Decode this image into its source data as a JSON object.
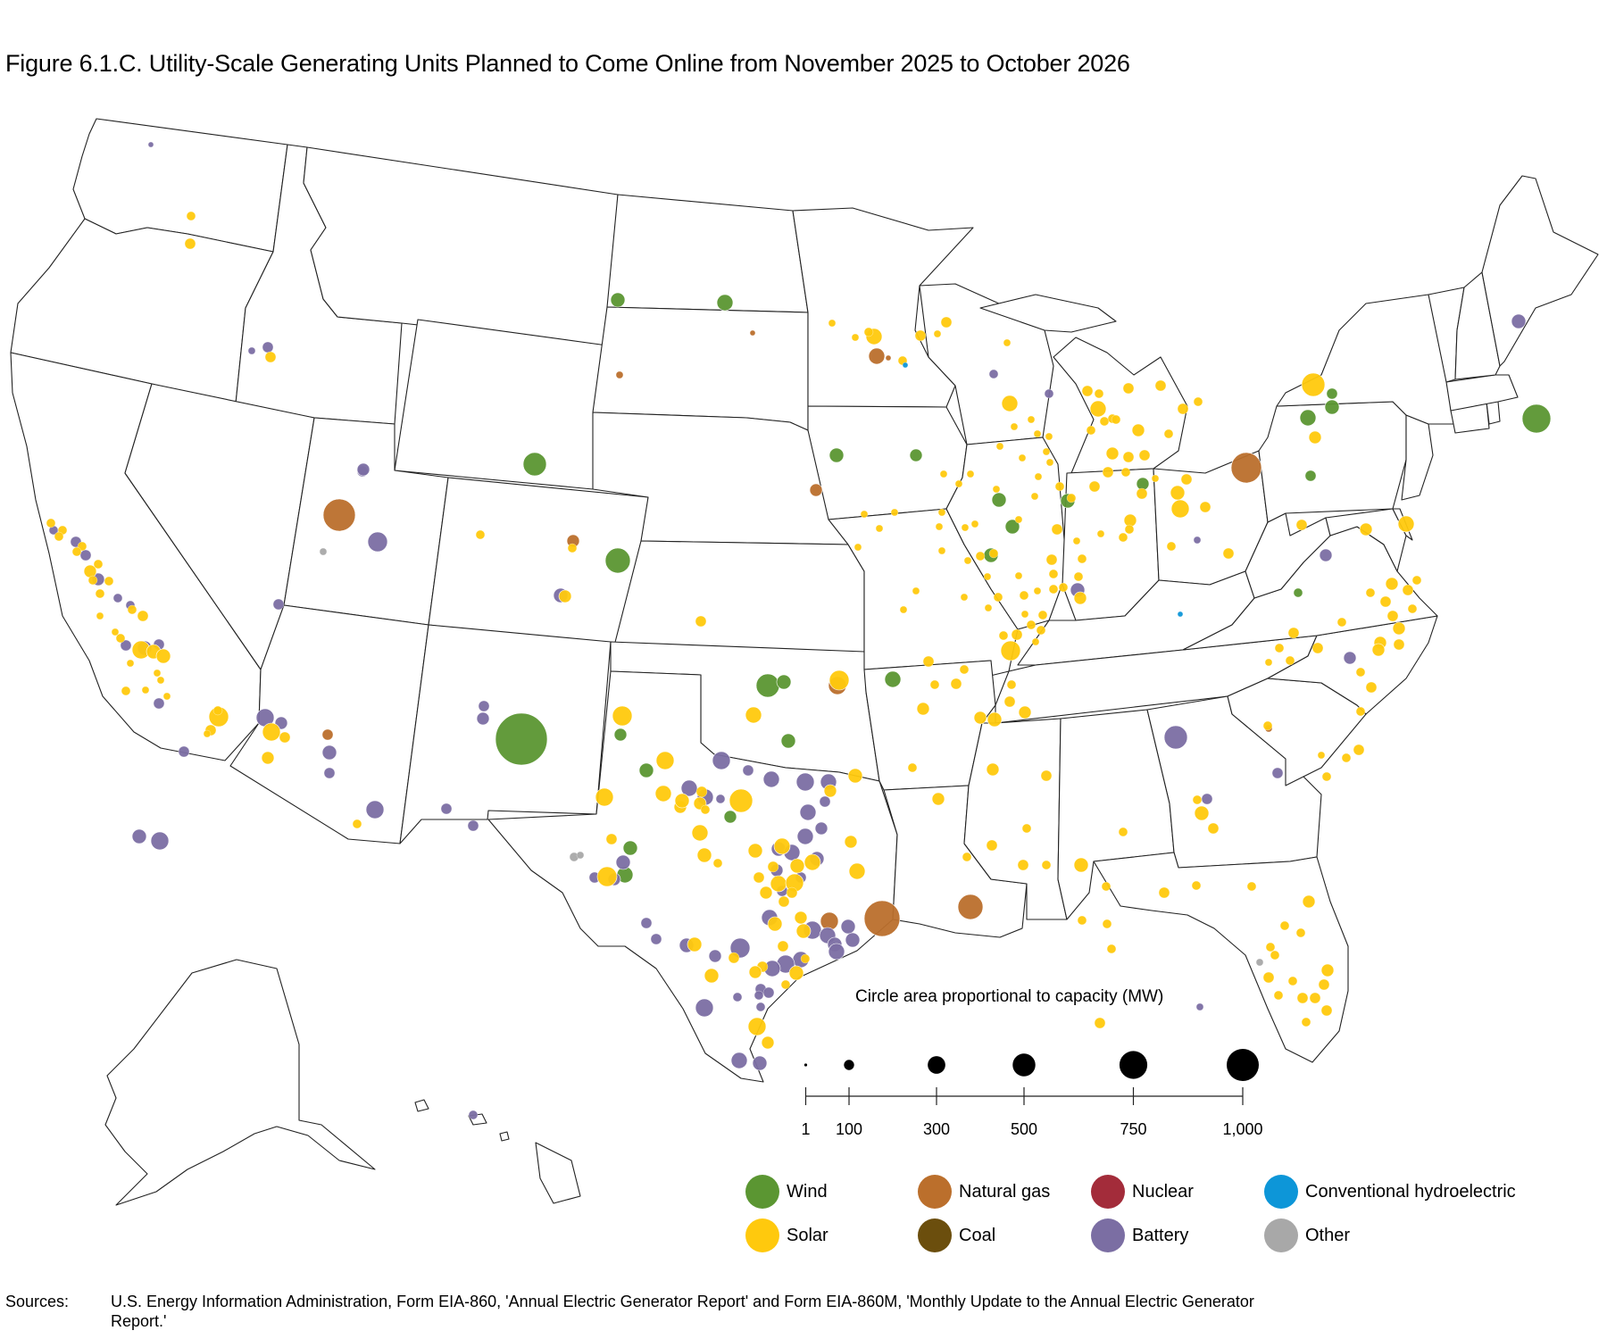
{
  "title": "Figure 6.1.C. Utility-Scale Generating Units Planned to Come Online from November 2025 to October 2026",
  "legend": {
    "size_title": "Circle area proportional to capacity (MW)",
    "size_ticks": [
      {
        "value": 1,
        "label": "1"
      },
      {
        "value": 100,
        "label": "100"
      },
      {
        "value": 300,
        "label": "300"
      },
      {
        "value": 500,
        "label": "500"
      },
      {
        "value": 750,
        "label": "750"
      },
      {
        "value": 1000,
        "label": "1,000"
      }
    ],
    "categories": [
      {
        "key": "wind",
        "label": "Wind",
        "color": "#5b9632"
      },
      {
        "key": "natural_gas",
        "label": "Natural gas",
        "color": "#bb6f2c"
      },
      {
        "key": "nuclear",
        "label": "Nuclear",
        "color": "#a32c3a"
      },
      {
        "key": "hydro",
        "label": "Conventional hydroelectric",
        "color": "#0d96d8"
      },
      {
        "key": "solar",
        "label": "Solar",
        "color": "#ffc90d"
      },
      {
        "key": "coal",
        "label": "Coal",
        "color": "#6b4e0d"
      },
      {
        "key": "battery",
        "label": "Battery",
        "color": "#7b6ea3"
      },
      {
        "key": "other",
        "label": "Other",
        "color": "#a8a8a8"
      }
    ]
  },
  "sources": {
    "label": "Sources:",
    "text": "U.S. Energy Information Administration, Form EIA-860, 'Annual Electric Generator Report' and Form EIA-860M, 'Monthly Update to the Annual Electric Generator Report.'"
  }
}
